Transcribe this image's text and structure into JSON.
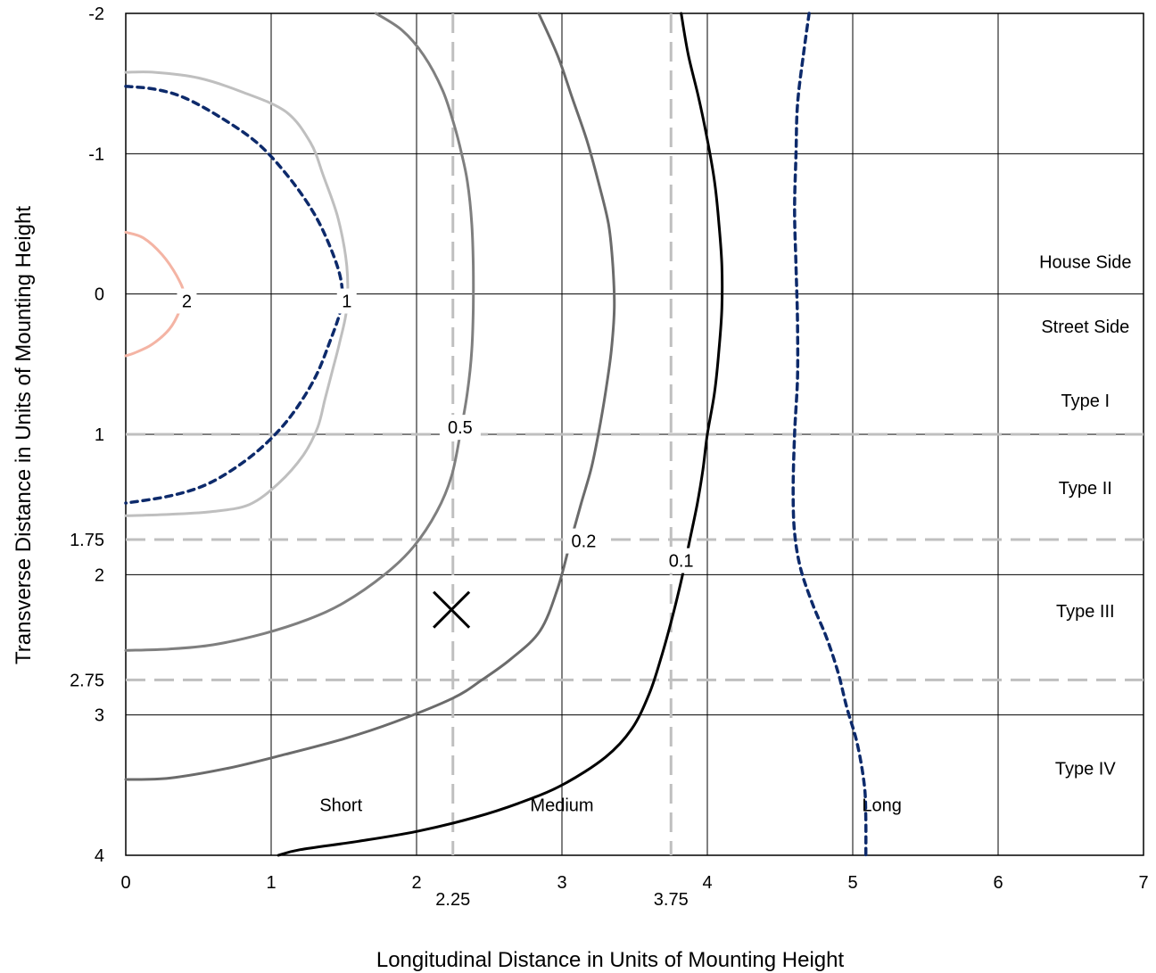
{
  "chart_data": {
    "type": "line",
    "title": "",
    "xlabel": "Longitudinal Distance in Units of Mounting Height",
    "ylabel": "Transverse Distance in Units of Mounting Height",
    "xlim": [
      0,
      7
    ],
    "ylim": [
      -2,
      4
    ],
    "y_inverted": true,
    "grid": true,
    "x_ticks": [
      "0",
      "1",
      "2",
      "3",
      "4",
      "5",
      "6",
      "7"
    ],
    "x_extra_ticks": [
      {
        "value": 2.25,
        "label": "2.25"
      },
      {
        "value": 3.75,
        "label": "3.75"
      }
    ],
    "y_ticks": [
      {
        "value": -2,
        "label": "-2"
      },
      {
        "value": -1,
        "label": "-1"
      },
      {
        "value": 0,
        "label": "0"
      },
      {
        "value": 1,
        "label": "1"
      },
      {
        "value": 1.75,
        "label": "1.75"
      },
      {
        "value": 2,
        "label": "2"
      },
      {
        "value": 2.75,
        "label": "2.75"
      },
      {
        "value": 3,
        "label": "3"
      },
      {
        "value": 4,
        "label": "4"
      }
    ],
    "reference_lines": {
      "horizontal_dashed": [
        1,
        1.75,
        2.75
      ],
      "vertical_dashed": [
        2.25,
        3.75
      ]
    },
    "region_labels": [
      {
        "text": "House Side",
        "x": 6.6,
        "y": -0.23
      },
      {
        "text": "Street Side",
        "x": 6.6,
        "y": 0.23
      },
      {
        "text": "Type I",
        "x": 6.6,
        "y": 0.76
      },
      {
        "text": "Type II",
        "x": 6.6,
        "y": 1.38
      },
      {
        "text": "Type III",
        "x": 6.6,
        "y": 2.26
      },
      {
        "text": "Type IV",
        "x": 6.6,
        "y": 3.38
      },
      {
        "text": "Short",
        "x": 1.48,
        "y": 3.64
      },
      {
        "text": "Medium",
        "x": 3.0,
        "y": 3.64
      },
      {
        "text": "Long",
        "x": 5.2,
        "y": 3.64
      }
    ],
    "marker": {
      "symbol": "x",
      "x": 2.24,
      "y": 2.25
    },
    "series": [
      {
        "label": "2",
        "color": "#f4b4a4",
        "dash": "solid",
        "label_pos": [
          0.42,
          0.05
        ],
        "points": [
          [
            0.0,
            -0.44
          ],
          [
            0.12,
            -0.4
          ],
          [
            0.25,
            -0.28
          ],
          [
            0.35,
            -0.13
          ],
          [
            0.4,
            0.0
          ],
          [
            0.37,
            0.12
          ],
          [
            0.3,
            0.25
          ],
          [
            0.18,
            0.36
          ],
          [
            0.06,
            0.42
          ],
          [
            0.0,
            0.44
          ]
        ]
      },
      {
        "label": "1",
        "color": "#bfbfbf",
        "dash": "solid",
        "label_pos": [
          1.52,
          0.05
        ],
        "points": [
          [
            0.0,
            -1.58
          ],
          [
            0.2,
            -1.58
          ],
          [
            0.5,
            -1.54
          ],
          [
            0.8,
            -1.44
          ],
          [
            1.1,
            -1.3
          ],
          [
            1.27,
            -1.08
          ],
          [
            1.36,
            -0.84
          ],
          [
            1.46,
            -0.54
          ],
          [
            1.52,
            -0.2
          ],
          [
            1.52,
            0.1
          ],
          [
            1.47,
            0.35
          ],
          [
            1.42,
            0.55
          ],
          [
            1.37,
            0.75
          ],
          [
            1.32,
            0.95
          ],
          [
            1.22,
            1.15
          ],
          [
            1.05,
            1.35
          ],
          [
            0.85,
            1.5
          ],
          [
            0.6,
            1.55
          ],
          [
            0.3,
            1.57
          ],
          [
            0.0,
            1.58
          ]
        ]
      },
      {
        "label": "",
        "color": "#0d2a6b",
        "dash": "dashed",
        "points": [
          [
            0.0,
            -1.48
          ],
          [
            0.2,
            -1.46
          ],
          [
            0.4,
            -1.4
          ],
          [
            0.65,
            -1.26
          ],
          [
            0.9,
            -1.08
          ],
          [
            1.1,
            -0.86
          ],
          [
            1.28,
            -0.6
          ],
          [
            1.4,
            -0.35
          ],
          [
            1.48,
            -0.1
          ],
          [
            1.48,
            0.1
          ],
          [
            1.4,
            0.35
          ],
          [
            1.3,
            0.6
          ],
          [
            1.15,
            0.85
          ],
          [
            0.98,
            1.05
          ],
          [
            0.78,
            1.22
          ],
          [
            0.55,
            1.36
          ],
          [
            0.3,
            1.44
          ],
          [
            0.0,
            1.49
          ]
        ]
      },
      {
        "label": "0.5",
        "color": "#7f7f7f",
        "dash": "solid",
        "label_pos": [
          2.3,
          0.95
        ],
        "points": [
          [
            1.72,
            -2.0
          ],
          [
            1.9,
            -1.88
          ],
          [
            2.05,
            -1.7
          ],
          [
            2.18,
            -1.45
          ],
          [
            2.26,
            -1.2
          ],
          [
            2.31,
            -1.0
          ],
          [
            2.35,
            -0.8
          ],
          [
            2.38,
            -0.5
          ],
          [
            2.39,
            -0.2
          ],
          [
            2.39,
            0.1
          ],
          [
            2.38,
            0.4
          ],
          [
            2.35,
            0.7
          ],
          [
            2.3,
            1.0
          ],
          [
            2.24,
            1.3
          ],
          [
            2.14,
            1.55
          ],
          [
            1.98,
            1.8
          ],
          [
            1.78,
            2.0
          ],
          [
            1.5,
            2.2
          ],
          [
            1.25,
            2.32
          ],
          [
            0.95,
            2.42
          ],
          [
            0.6,
            2.5
          ],
          [
            0.3,
            2.53
          ],
          [
            0.0,
            2.54
          ]
        ]
      },
      {
        "label": "0.2",
        "color": "#6b6b6b",
        "dash": "solid",
        "label_pos": [
          3.15,
          1.76
        ],
        "points": [
          [
            2.84,
            -2.0
          ],
          [
            2.97,
            -1.7
          ],
          [
            3.07,
            -1.4
          ],
          [
            3.17,
            -1.1
          ],
          [
            3.25,
            -0.8
          ],
          [
            3.32,
            -0.5
          ],
          [
            3.35,
            -0.2
          ],
          [
            3.36,
            0.1
          ],
          [
            3.34,
            0.4
          ],
          [
            3.3,
            0.7
          ],
          [
            3.25,
            1.0
          ],
          [
            3.2,
            1.25
          ],
          [
            3.13,
            1.5
          ],
          [
            3.05,
            1.8
          ],
          [
            2.97,
            2.1
          ],
          [
            2.85,
            2.4
          ],
          [
            2.65,
            2.6
          ],
          [
            2.45,
            2.75
          ],
          [
            2.25,
            2.88
          ],
          [
            1.85,
            3.05
          ],
          [
            1.5,
            3.17
          ],
          [
            1.1,
            3.28
          ],
          [
            0.7,
            3.38
          ],
          [
            0.3,
            3.45
          ],
          [
            0.0,
            3.46
          ]
        ]
      },
      {
        "label": "0.1",
        "color": "#000000",
        "dash": "solid",
        "label_pos": [
          3.82,
          1.9
        ],
        "points": [
          [
            3.82,
            -2.0
          ],
          [
            3.87,
            -1.7
          ],
          [
            3.94,
            -1.4
          ],
          [
            4.0,
            -1.1
          ],
          [
            4.05,
            -0.8
          ],
          [
            4.08,
            -0.5
          ],
          [
            4.1,
            -0.2
          ],
          [
            4.1,
            0.1
          ],
          [
            4.08,
            0.4
          ],
          [
            4.05,
            0.7
          ],
          [
            4.0,
            1.0
          ],
          [
            3.97,
            1.25
          ],
          [
            3.93,
            1.5
          ],
          [
            3.88,
            1.75
          ],
          [
            3.83,
            2.0
          ],
          [
            3.76,
            2.3
          ],
          [
            3.68,
            2.6
          ],
          [
            3.6,
            2.85
          ],
          [
            3.48,
            3.1
          ],
          [
            3.3,
            3.3
          ],
          [
            3.0,
            3.5
          ],
          [
            2.7,
            3.63
          ],
          [
            2.4,
            3.73
          ],
          [
            2.0,
            3.83
          ],
          [
            1.6,
            3.9
          ],
          [
            1.2,
            3.96
          ],
          [
            1.05,
            4.0
          ]
        ]
      },
      {
        "label": "",
        "color": "#0d2a6b",
        "dash": "dashed",
        "points": [
          [
            4.7,
            -2.0
          ],
          [
            4.66,
            -1.7
          ],
          [
            4.62,
            -1.35
          ],
          [
            4.61,
            -1.0
          ],
          [
            4.6,
            -0.6
          ],
          [
            4.61,
            -0.2
          ],
          [
            4.62,
            0.2
          ],
          [
            4.62,
            0.6
          ],
          [
            4.6,
            1.0
          ],
          [
            4.59,
            1.4
          ],
          [
            4.6,
            1.7
          ],
          [
            4.64,
            1.95
          ],
          [
            4.72,
            2.2
          ],
          [
            4.82,
            2.45
          ],
          [
            4.9,
            2.7
          ],
          [
            4.96,
            2.95
          ],
          [
            5.03,
            3.2
          ],
          [
            5.08,
            3.5
          ],
          [
            5.09,
            3.75
          ],
          [
            5.09,
            4.0
          ]
        ]
      }
    ]
  }
}
